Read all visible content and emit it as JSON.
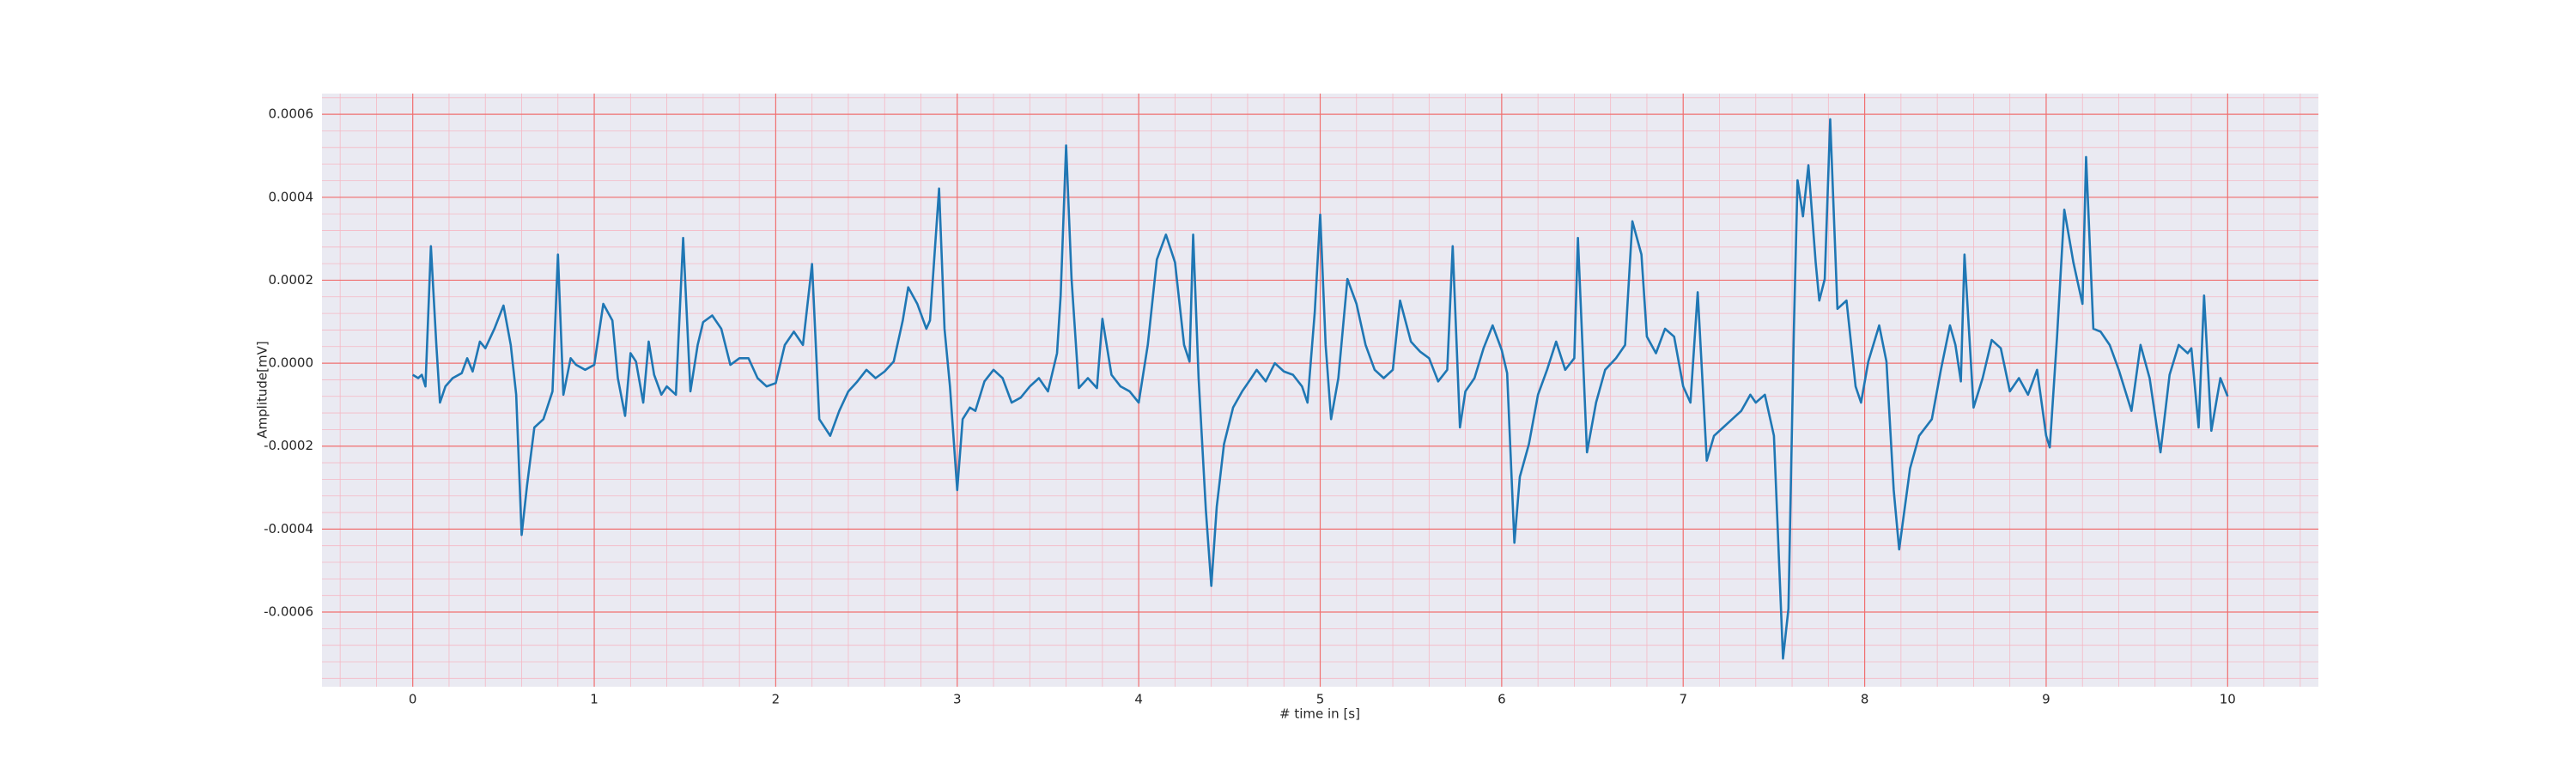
{
  "chart_data": {
    "type": "line",
    "xlabel": "# time in [s]",
    "ylabel": "Amplitude[mV]",
    "color": "#1f77b4",
    "background": "#eaeaf2",
    "grid_color": "#f07070",
    "minor_grid_color": "#f5b8c4",
    "minor_divisions": 5,
    "grid": true,
    "xlim": [
      -0.5,
      10.5
    ],
    "xticks": [
      0,
      1,
      2,
      3,
      4,
      5,
      6,
      7,
      8,
      9,
      10
    ],
    "ylim": [
      -0.00078,
      0.00065
    ],
    "yticks": [
      -0.0006,
      -0.0004,
      -0.0002,
      {
        "value": 0,
        "label": "0.0000"
      },
      0.0002,
      0.0004,
      0.0006
    ],
    "x": [
      0,
      0.03,
      0.05,
      0.07,
      0.1,
      0.13,
      0.15,
      0.18,
      0.22,
      0.27,
      0.3,
      0.33,
      0.37,
      0.4,
      0.45,
      0.5,
      0.54,
      0.57,
      0.6,
      0.63,
      0.67,
      0.72,
      0.77,
      0.8,
      0.83,
      0.87,
      0.9,
      0.95,
      1.0,
      1.05,
      1.1,
      1.13,
      1.17,
      1.2,
      1.23,
      1.27,
      1.3,
      1.33,
      1.37,
      1.4,
      1.45,
      1.49,
      1.53,
      1.57,
      1.6,
      1.65,
      1.7,
      1.75,
      1.8,
      1.85,
      1.9,
      1.95,
      2.0,
      2.05,
      2.1,
      2.15,
      2.2,
      2.24,
      2.3,
      2.35,
      2.4,
      2.45,
      2.5,
      2.55,
      2.6,
      2.65,
      2.7,
      2.73,
      2.78,
      2.83,
      2.85,
      2.9,
      2.93,
      2.96,
      3.0,
      3.03,
      3.07,
      3.1,
      3.15,
      3.2,
      3.25,
      3.3,
      3.35,
      3.4,
      3.45,
      3.5,
      3.55,
      3.57,
      3.6,
      3.63,
      3.67,
      3.72,
      3.77,
      3.8,
      3.85,
      3.9,
      3.95,
      4.0,
      4.05,
      4.1,
      4.15,
      4.2,
      4.25,
      4.28,
      4.3,
      4.33,
      4.37,
      4.4,
      4.43,
      4.47,
      4.52,
      4.57,
      4.62,
      4.65,
      4.7,
      4.75,
      4.8,
      4.85,
      4.9,
      4.93,
      4.97,
      5.0,
      5.03,
      5.06,
      5.1,
      5.15,
      5.2,
      5.25,
      5.3,
      5.35,
      5.4,
      5.44,
      5.5,
      5.55,
      5.6,
      5.65,
      5.7,
      5.73,
      5.77,
      5.8,
      5.85,
      5.9,
      5.95,
      6.0,
      6.03,
      6.07,
      6.1,
      6.15,
      6.2,
      6.25,
      6.3,
      6.35,
      6.4,
      6.42,
      6.47,
      6.52,
      6.57,
      6.63,
      6.68,
      6.72,
      6.77,
      6.8,
      6.85,
      6.9,
      6.95,
      7.0,
      7.04,
      7.08,
      7.13,
      7.17,
      7.22,
      7.27,
      7.32,
      7.37,
      7.4,
      7.45,
      7.5,
      7.55,
      7.58,
      7.61,
      7.63,
      7.66,
      7.69,
      7.73,
      7.75,
      7.78,
      7.81,
      7.85,
      7.9,
      7.95,
      7.98,
      8.02,
      8.08,
      8.12,
      8.16,
      8.19,
      8.25,
      8.3,
      8.37,
      8.42,
      8.47,
      8.5,
      8.53,
      8.55,
      8.6,
      8.65,
      8.7,
      8.75,
      8.8,
      8.85,
      8.9,
      8.95,
      9.0,
      9.02,
      9.06,
      9.1,
      9.15,
      9.2,
      9.22,
      9.26,
      9.3,
      9.35,
      9.4,
      9.47,
      9.52,
      9.57,
      9.63,
      9.68,
      9.73,
      9.78,
      9.8,
      9.84,
      9.87,
      9.91,
      9.96,
      10.0
    ],
    "values": [
      -2.8e-05,
      -3.6e-05,
      -2.8e-05,
      -5.6e-05,
      0.000282,
      4.4e-05,
      -9.5e-05,
      -5.6e-05,
      -3.6e-05,
      -2.4e-05,
      1.2e-05,
      -2e-05,
      5.2e-05,
      3.6e-05,
      8.3e-05,
      0.000139,
      4.4e-05,
      -7.6e-05,
      -0.000414,
      -0.000294,
      -0.000155,
      -0.000135,
      -6.8e-05,
      0.000262,
      -7.6e-05,
      1.2e-05,
      -4e-06,
      -1.6e-05,
      -4e-06,
      0.000143,
      0.000103,
      -3.6e-05,
      -0.000127,
      2.4e-05,
      4e-06,
      -9.5e-05,
      5.2e-05,
      -2.8e-05,
      -7.6e-05,
      -5.6e-05,
      -7.6e-05,
      0.000302,
      -6.8e-05,
      4.4e-05,
      9.9e-05,
      0.000115,
      8.3e-05,
      -4e-06,
      1.2e-05,
      1.2e-05,
      -3.6e-05,
      -5.6e-05,
      -4.8e-05,
      4.4e-05,
      7.6e-05,
      4.4e-05,
      0.000239,
      -0.000135,
      -0.000175,
      -0.000115,
      -6.8e-05,
      -4.4e-05,
      -1.6e-05,
      -3.6e-05,
      -2e-05,
      4e-06,
      0.000103,
      0.000183,
      0.000143,
      8.3e-05,
      0.000103,
      0.000421,
      8.3e-05,
      -5.6e-05,
      -0.000306,
      -0.000135,
      -0.000107,
      -0.000115,
      -4.4e-05,
      -1.6e-05,
      -3.6e-05,
      -9.5e-05,
      -8.3e-05,
      -5.6e-05,
      -3.6e-05,
      -6.8e-05,
      2.4e-05,
      0.000163,
      0.000525,
      0.000203,
      -6e-05,
      -3.6e-05,
      -6e-05,
      0.000107,
      -2.8e-05,
      -5.6e-05,
      -6.8e-05,
      -9.5e-05,
      4.4e-05,
      0.00025,
      0.00031,
      0.000243,
      4.4e-05,
      4e-06,
      0.00031,
      -3.6e-05,
      -0.000354,
      -0.000537,
      -0.000346,
      -0.000195,
      -0.000107,
      -6.8e-05,
      -3.6e-05,
      -1.6e-05,
      -4.4e-05,
      0,
      -2e-05,
      -2.8e-05,
      -5.6e-05,
      -9.5e-05,
      0.000123,
      0.000358,
      4.4e-05,
      -0.000135,
      -3.6e-05,
      0.000203,
      0.000143,
      4.4e-05,
      -1.6e-05,
      -3.6e-05,
      -1.6e-05,
      0.000151,
      5.2e-05,
      2.8e-05,
      1.2e-05,
      -4.4e-05,
      -1.6e-05,
      0.000282,
      -0.000155,
      -6.8e-05,
      -3.6e-05,
      3.6e-05,
      9.1e-05,
      3.2e-05,
      -2.4e-05,
      -0.000433,
      -0.000274,
      -0.000195,
      -7.6e-05,
      -1.6e-05,
      5.2e-05,
      -1.6e-05,
      1.2e-05,
      0.000302,
      -0.000215,
      -9.5e-05,
      -1.6e-05,
      1.2e-05,
      4.4e-05,
      0.000342,
      0.000262,
      6.4e-05,
      2.4e-05,
      8.3e-05,
      6.4e-05,
      -5.6e-05,
      -9.5e-05,
      0.000171,
      -0.000235,
      -0.000175,
      -0.000155,
      -0.000135,
      -0.000115,
      -7.6e-05,
      -9.5e-05,
      -7.6e-05,
      -0.000175,
      -0.000712,
      -0.000592,
      8.3e-05,
      0.000441,
      0.000354,
      0.000477,
      0.000243,
      0.000151,
      0.000203,
      0.000588,
      0.000131,
      0.000151,
      -5.6e-05,
      -9.5e-05,
      4e-06,
      9.1e-05,
      4e-06,
      -0.000306,
      -0.000449,
      -0.000254,
      -0.000175,
      -0.000135,
      -1.6e-05,
      9.1e-05,
      4.4e-05,
      -4.4e-05,
      0.000262,
      -0.000107,
      -3.6e-05,
      5.6e-05,
      3.6e-05,
      -6.8e-05,
      -3.6e-05,
      -7.6e-05,
      -1.6e-05,
      -0.000175,
      -0.000203,
      6.4e-05,
      0.00037,
      0.000243,
      0.000143,
      0.000497,
      8.3e-05,
      7.6e-05,
      4.4e-05,
      -1.6e-05,
      -0.000115,
      4.4e-05,
      -3.6e-05,
      -0.000215,
      -2.8e-05,
      4.4e-05,
      2.4e-05,
      3.6e-05,
      -0.000155,
      0.000163,
      -0.000163,
      -3.6e-05,
      -8e-05
    ]
  }
}
